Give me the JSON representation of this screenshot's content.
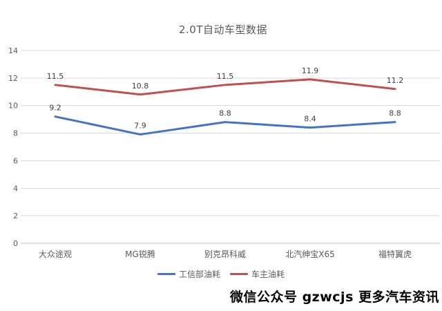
{
  "chart_data": {
    "type": "line",
    "title": "2.0T自动车型数据",
    "categories": [
      "大众途观",
      "MG锐腾",
      "别克昂科威",
      "北汽绅宝X65",
      "福特翼虎"
    ],
    "series": [
      {
        "name": "工信部油耗",
        "values": [
          9.2,
          7.9,
          8.8,
          8.4,
          8.8
        ],
        "color": "#4472c4"
      },
      {
        "name": "车主油耗",
        "values": [
          11.5,
          10.8,
          11.5,
          11.9,
          11.2
        ],
        "color": "#c0504d"
      }
    ],
    "xlabel": "",
    "ylabel": "",
    "ylim": [
      0,
      14
    ],
    "ytick_step": 2,
    "grid": true,
    "legend_position": "bottom",
    "data_labels": true
  },
  "watermark": {
    "text": "微信公众号 gzwcjs 更多汽车资讯"
  },
  "colors": {
    "series_blue": "#4472c4",
    "series_red": "#c0504d",
    "gridline": "#d9d9d9",
    "axis_line": "#bfbfbf",
    "tick_text": "#595959",
    "data_label_text": "#3f3f3f",
    "watermark_text": "#000000"
  }
}
